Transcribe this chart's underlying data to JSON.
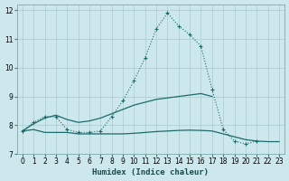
{
  "xlabel": "Humidex (Indice chaleur)",
  "background_color": "#cce8ec",
  "grid_color": "#b0cfd4",
  "line_color": "#1a6b6b",
  "xlim": [
    -0.5,
    23.5
  ],
  "ylim": [
    7,
    12.2
  ],
  "yticks": [
    7,
    8,
    9,
    10,
    11,
    12
  ],
  "xticks": [
    0,
    1,
    2,
    3,
    4,
    5,
    6,
    7,
    8,
    9,
    10,
    11,
    12,
    13,
    14,
    15,
    16,
    17,
    18,
    19,
    20,
    21,
    22,
    23
  ],
  "series": [
    {
      "x": [
        0,
        1,
        2,
        3,
        4,
        5,
        6,
        7,
        8,
        9,
        10,
        11,
        12,
        13,
        14,
        15,
        16,
        17,
        18,
        19,
        20,
        21
      ],
      "y": [
        7.8,
        8.1,
        8.3,
        8.3,
        7.85,
        7.75,
        7.75,
        7.8,
        8.3,
        8.85,
        9.55,
        10.35,
        11.35,
        11.9,
        11.45,
        11.15,
        10.75,
        9.25,
        7.85,
        7.45,
        7.35,
        7.45
      ],
      "style": "dotted_marker"
    },
    {
      "x": [
        0,
        1,
        2,
        3,
        4,
        5,
        6,
        7,
        8,
        9,
        10,
        11,
        12,
        13,
        14,
        15,
        16,
        17
      ],
      "y": [
        7.8,
        8.05,
        8.25,
        8.35,
        8.2,
        8.1,
        8.15,
        8.25,
        8.4,
        8.55,
        8.7,
        8.8,
        8.9,
        8.95,
        9.0,
        9.05,
        9.1,
        9.0
      ],
      "style": "solid"
    },
    {
      "x": [
        0,
        1,
        2,
        3,
        4,
        5,
        6,
        7,
        8,
        9,
        10,
        11,
        12,
        13,
        14,
        15,
        16,
        17,
        18,
        19,
        20,
        21,
        22,
        23
      ],
      "y": [
        7.8,
        7.85,
        7.75,
        7.75,
        7.75,
        7.7,
        7.7,
        7.7,
        7.7,
        7.7,
        7.72,
        7.75,
        7.78,
        7.8,
        7.82,
        7.83,
        7.82,
        7.8,
        7.7,
        7.6,
        7.5,
        7.45,
        7.43,
        7.43
      ],
      "style": "solid"
    }
  ]
}
